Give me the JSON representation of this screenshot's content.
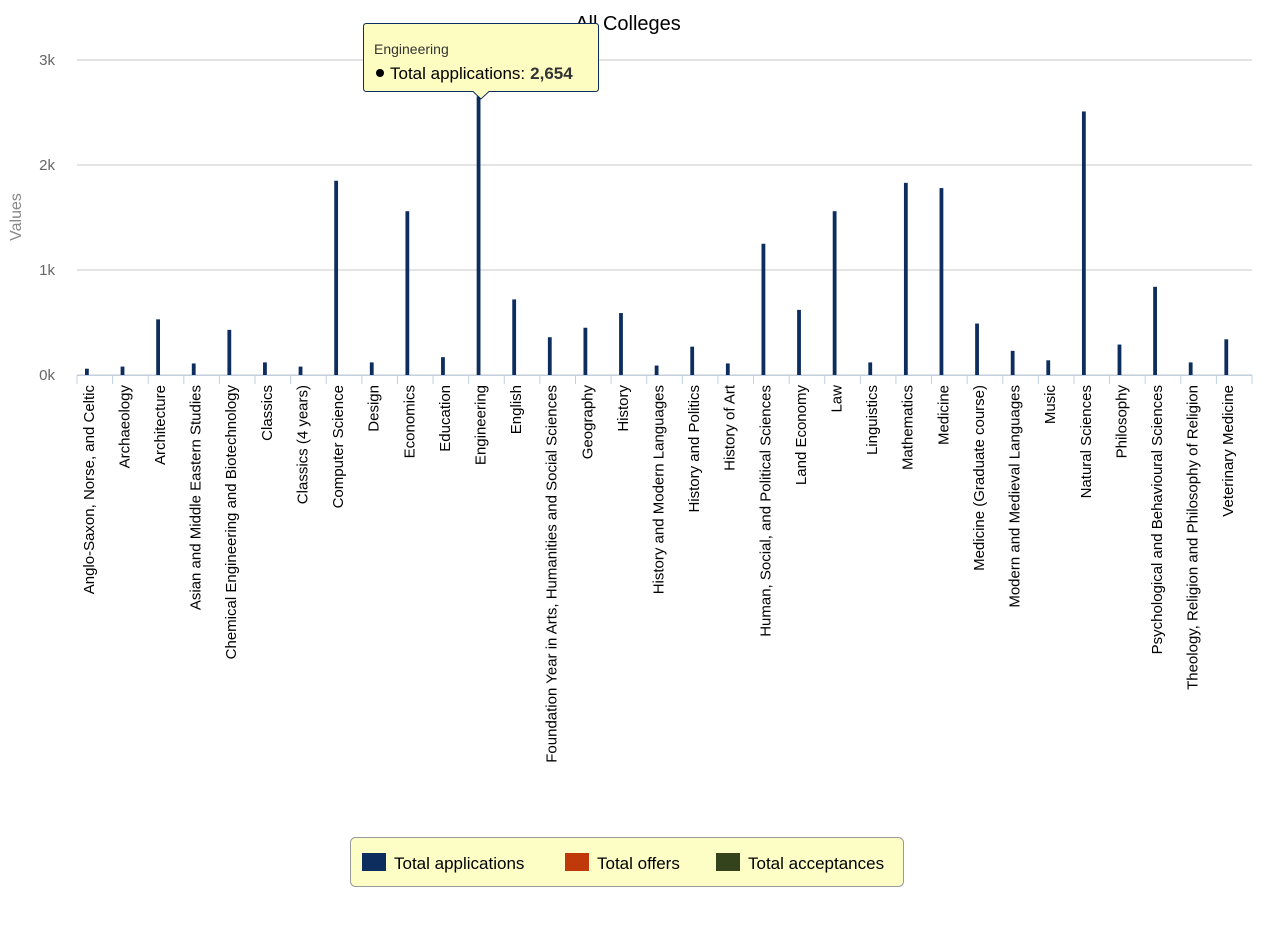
{
  "chart_data": {
    "type": "bar",
    "title": "All Colleges",
    "y_axis_label": "Values",
    "categories": [
      "Anglo-Saxon, Norse, and Celtic",
      "Archaeology",
      "Architecture",
      "Asian and Middle Eastern Studies",
      "Chemical Engineering and Biotechnology",
      "Classics",
      "Classics (4 years)",
      "Computer Science",
      "Design",
      "Economics",
      "Education",
      "Engineering",
      "English",
      "Foundation Year in Arts, Humanities and Social Sciences",
      "Geography",
      "History",
      "History and Modern Languages",
      "History and Politics",
      "History of Art",
      "Human, Social, and Political Sciences",
      "Land Economy",
      "Law",
      "Linguistics",
      "Mathematics",
      "Medicine",
      "Medicine (Graduate course)",
      "Modern and Medieval Languages",
      "Music",
      "Natural Sciences",
      "Philosophy",
      "Psychological and Behavioural Sciences",
      "Theology, Religion and Philosophy of Religion",
      "Veterinary Medicine"
    ],
    "series": [
      {
        "name": "Total applications",
        "color": "#0d2d5e",
        "values": [
          60,
          80,
          530,
          110,
          430,
          120,
          80,
          1850,
          120,
          1560,
          170,
          2654,
          720,
          360,
          450,
          590,
          90,
          270,
          110,
          1250,
          620,
          1560,
          120,
          1830,
          1780,
          490,
          230,
          140,
          2510,
          290,
          840,
          120,
          340
        ]
      },
      {
        "name": "Total offers",
        "color": "#c0390b",
        "values": [
          null,
          null,
          null,
          null,
          null,
          null,
          null,
          null,
          null,
          null,
          null,
          null,
          null,
          null,
          null,
          null,
          null,
          null,
          null,
          null,
          null,
          null,
          null,
          null,
          null,
          null,
          null,
          null,
          null,
          null,
          null,
          null,
          null
        ]
      },
      {
        "name": "Total acceptances",
        "color": "#34431c",
        "values": [
          null,
          null,
          null,
          null,
          null,
          null,
          null,
          null,
          null,
          null,
          null,
          null,
          null,
          null,
          null,
          null,
          null,
          null,
          null,
          null,
          null,
          null,
          null,
          null,
          null,
          null,
          null,
          null,
          null,
          null,
          null,
          null,
          null
        ]
      }
    ],
    "ylim": [
      0,
      3000
    ],
    "yticks": [
      {
        "value": 0,
        "label": "0k"
      },
      {
        "value": 1000,
        "label": "1k"
      },
      {
        "value": 2000,
        "label": "2k"
      },
      {
        "value": 3000,
        "label": "3k"
      }
    ],
    "grid": true,
    "legend": "bottom",
    "tooltip": {
      "title": "Engineering",
      "label": "Total applications:",
      "value": "2,654"
    }
  }
}
